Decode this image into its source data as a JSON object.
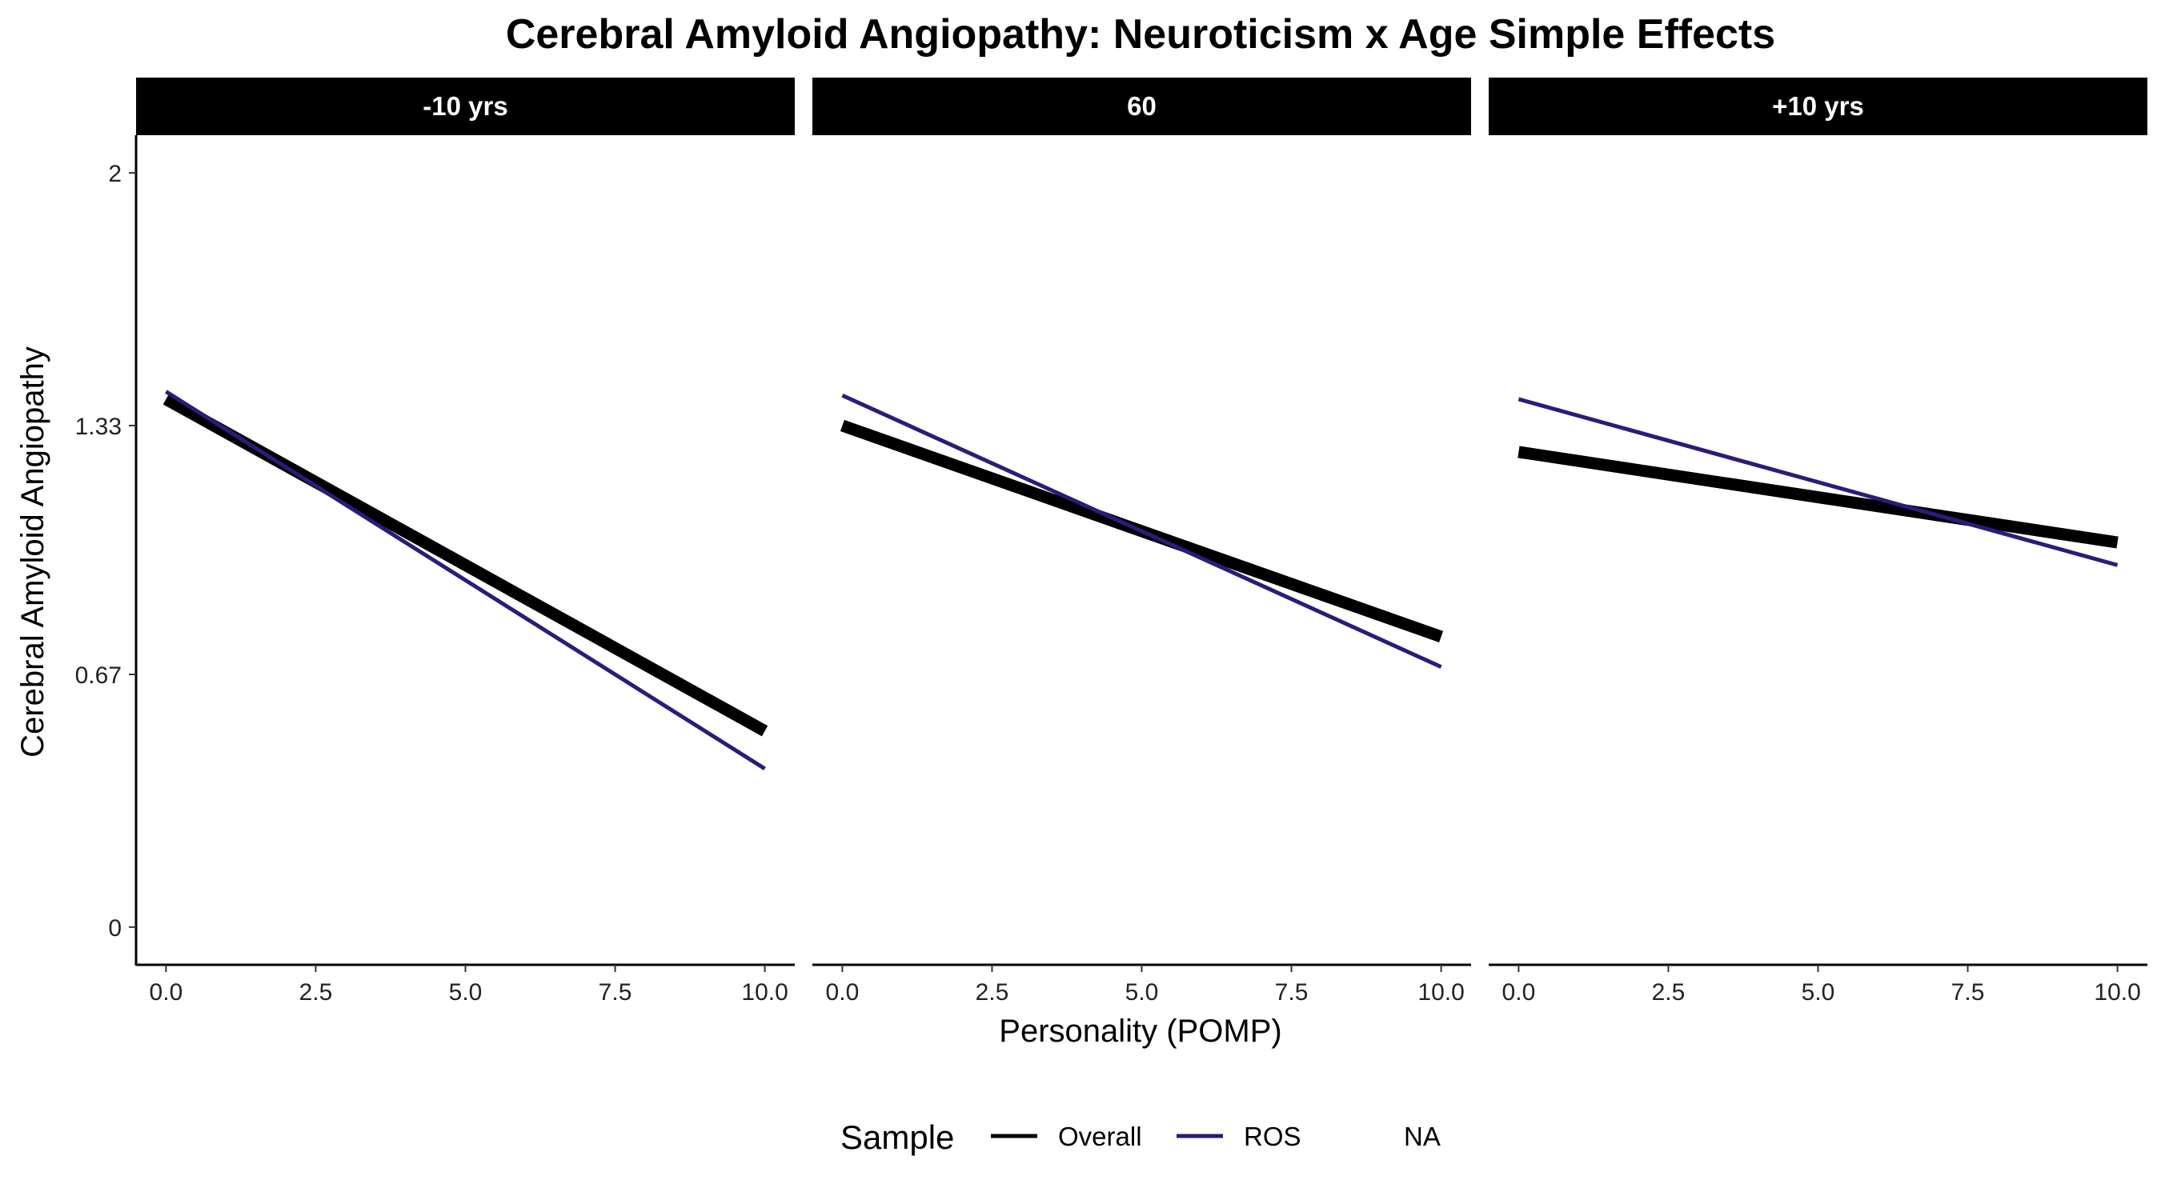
{
  "chart_data": {
    "type": "line",
    "title": "Cerebral Amyloid Angiopathy: Neuroticism x Age Simple Effects",
    "xlabel": "Personality (POMP)",
    "ylabel": "Cerebral Amyloid Angiopathy",
    "xlim": [
      -0.5,
      10.5
    ],
    "ylim": [
      -0.1,
      2.1
    ],
    "x_ticks": [
      0,
      2.5,
      5,
      7.5,
      10
    ],
    "x_tick_labels": [
      "0.0",
      "2.5",
      "5.0",
      "7.5",
      "10.0"
    ],
    "y_ticks": [
      0,
      0.67,
      1.33,
      2
    ],
    "y_tick_labels": [
      "0",
      "0.67",
      "1.33",
      "2"
    ],
    "grid": false,
    "legend": {
      "title": "Sample",
      "position": "bottom",
      "entries": [
        {
          "label": "Overall",
          "color": "#000000"
        },
        {
          "label": "ROS",
          "color": "#2e1a7a"
        },
        {
          "label": "NA",
          "color": null
        }
      ]
    },
    "colors": {
      "Overall": "#000000",
      "ROS": "#2e1a7a"
    },
    "panels": [
      {
        "label": "-10 yrs",
        "series": [
          {
            "name": "Overall",
            "x": [
              0,
              10
            ],
            "y": [
              1.4,
              0.52
            ]
          },
          {
            "name": "ROS",
            "x": [
              0,
              10
            ],
            "y": [
              1.42,
              0.42
            ]
          }
        ]
      },
      {
        "label": "60",
        "series": [
          {
            "name": "Overall",
            "x": [
              0,
              10
            ],
            "y": [
              1.33,
              0.77
            ]
          },
          {
            "name": "ROS",
            "x": [
              0,
              10
            ],
            "y": [
              1.41,
              0.69
            ]
          }
        ]
      },
      {
        "label": "+10 yrs",
        "series": [
          {
            "name": "Overall",
            "x": [
              0,
              10
            ],
            "y": [
              1.26,
              1.02
            ]
          },
          {
            "name": "ROS",
            "x": [
              0,
              10
            ],
            "y": [
              1.4,
              0.96
            ]
          }
        ]
      }
    ]
  }
}
